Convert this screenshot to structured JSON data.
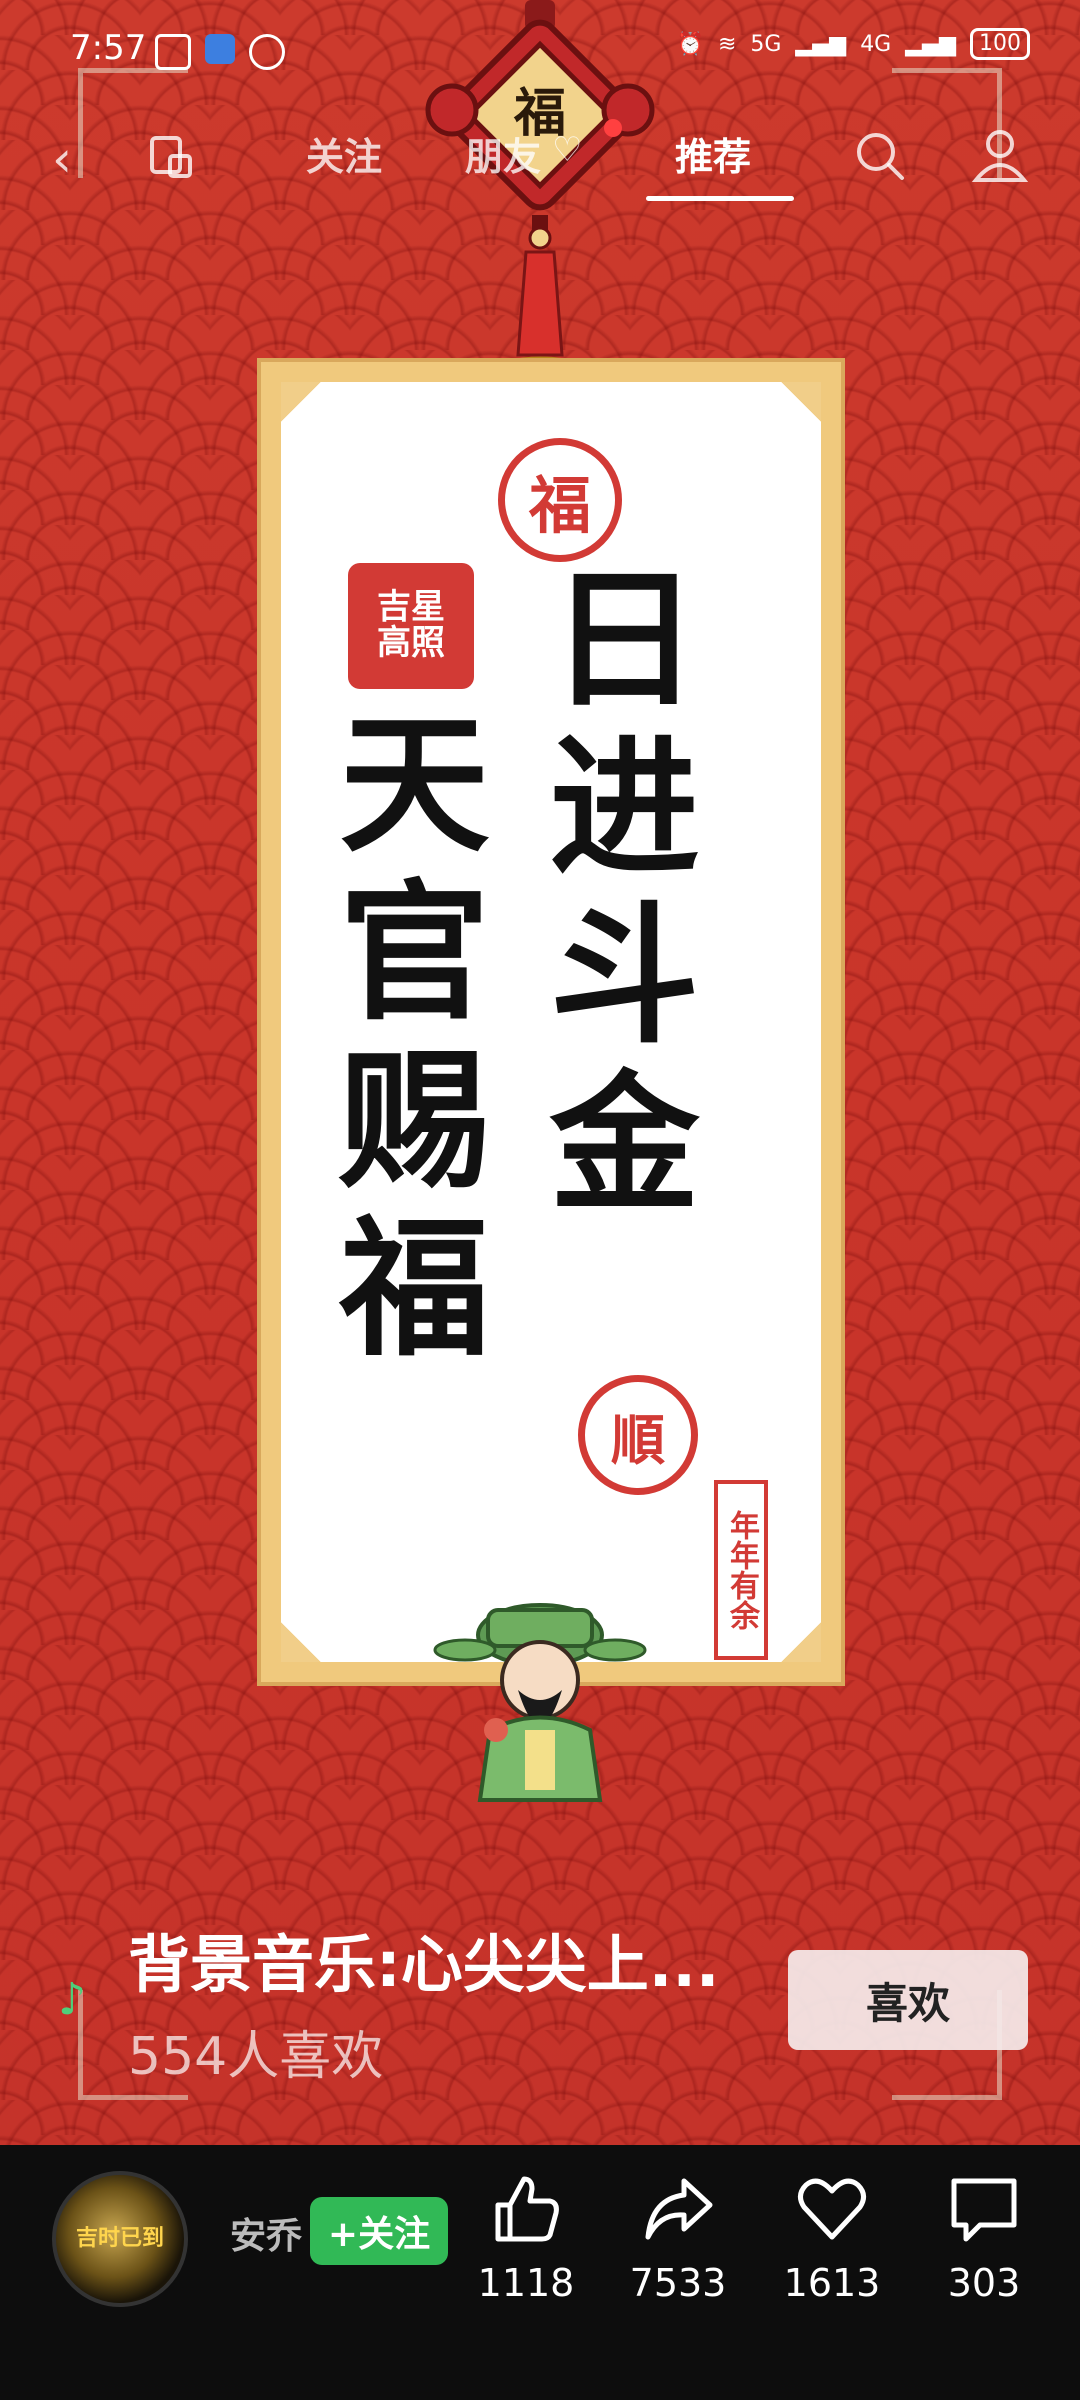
{
  "status_bar": {
    "time": "7:57",
    "battery": "100",
    "network_left": "5G",
    "network_right": "4G"
  },
  "top_nav": {
    "tabs": [
      {
        "label": "关注"
      },
      {
        "label": "朋友"
      },
      {
        "label": "推荐",
        "active": true
      }
    ]
  },
  "poster": {
    "top_charm": "福",
    "seal_top": "福",
    "seal_square": "吉星\n高照",
    "right_column": "日进斗金",
    "left_column": "天官赐福",
    "seal_shun": "順",
    "seal_vertical": "年年有余"
  },
  "music": {
    "title": "背景音乐:心尖尖上...",
    "likes": "554人喜欢",
    "like_button": "喜欢"
  },
  "bottom_bar": {
    "avatar_text": "吉时已到",
    "author": "安乔",
    "follow_label": "+关注",
    "actions": [
      {
        "icon": "thumbs-up-icon",
        "count": "1118"
      },
      {
        "icon": "share-icon",
        "count": "7533"
      },
      {
        "icon": "heart-icon",
        "count": "1613"
      },
      {
        "icon": "comment-icon",
        "count": "303"
      }
    ]
  },
  "colors": {
    "background_red": "#c8342a",
    "follow_green": "#31b956",
    "music_note_green": "#4ed07b"
  }
}
